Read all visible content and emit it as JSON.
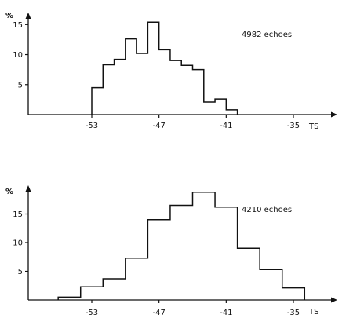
{
  "chart_data": [
    {
      "type": "bar",
      "histogram": true,
      "unit_label": "%",
      "xlabel": "TS",
      "annotation": "4982   echoes",
      "bin_edges": [
        -53,
        -52,
        -51,
        -50,
        -49,
        -48,
        -47,
        -46,
        -45,
        -44,
        -43,
        -42,
        -41,
        -40,
        -39,
        -38,
        -37,
        -36,
        -35,
        -34
      ],
      "values": [
        4.5,
        8.3,
        9.2,
        12.6,
        10.2,
        15.4,
        10.8,
        9.0,
        8.2,
        7.5,
        2.1,
        2.6,
        0.8,
        0,
        0,
        0,
        0,
        0,
        0
      ],
      "xlim": [
        -58.5,
        -31.5
      ],
      "ylim": [
        0,
        17
      ],
      "yticks": [
        5,
        10,
        15
      ],
      "ytick_labels": [
        "5",
        "10",
        "15"
      ],
      "xticks": [
        -53,
        -47,
        -41,
        -35
      ],
      "xtick_labels": [
        "-53",
        "-47",
        "-41",
        "-35"
      ]
    },
    {
      "type": "bar",
      "histogram": true,
      "unit_label": "%",
      "xlabel": "TS",
      "annotation": "4210   echoes",
      "bin_edges": [
        -56,
        -54,
        -52,
        -50,
        -48,
        -46,
        -44,
        -42,
        -40,
        -38,
        -36,
        -34
      ],
      "values": [
        0.5,
        2.3,
        3.7,
        7.3,
        14.0,
        16.5,
        18.8,
        16.2,
        9.0,
        5.3,
        2.1
      ],
      "xlim": [
        -58.5,
        -31.5
      ],
      "ylim": [
        0,
        20
      ],
      "yticks": [
        5,
        10,
        15
      ],
      "ytick_labels": [
        "5",
        "10",
        "15"
      ],
      "xticks": [
        -53,
        -47,
        -41,
        -35
      ],
      "xtick_labels": [
        "-53",
        "-47",
        "-41",
        "-35"
      ]
    }
  ]
}
